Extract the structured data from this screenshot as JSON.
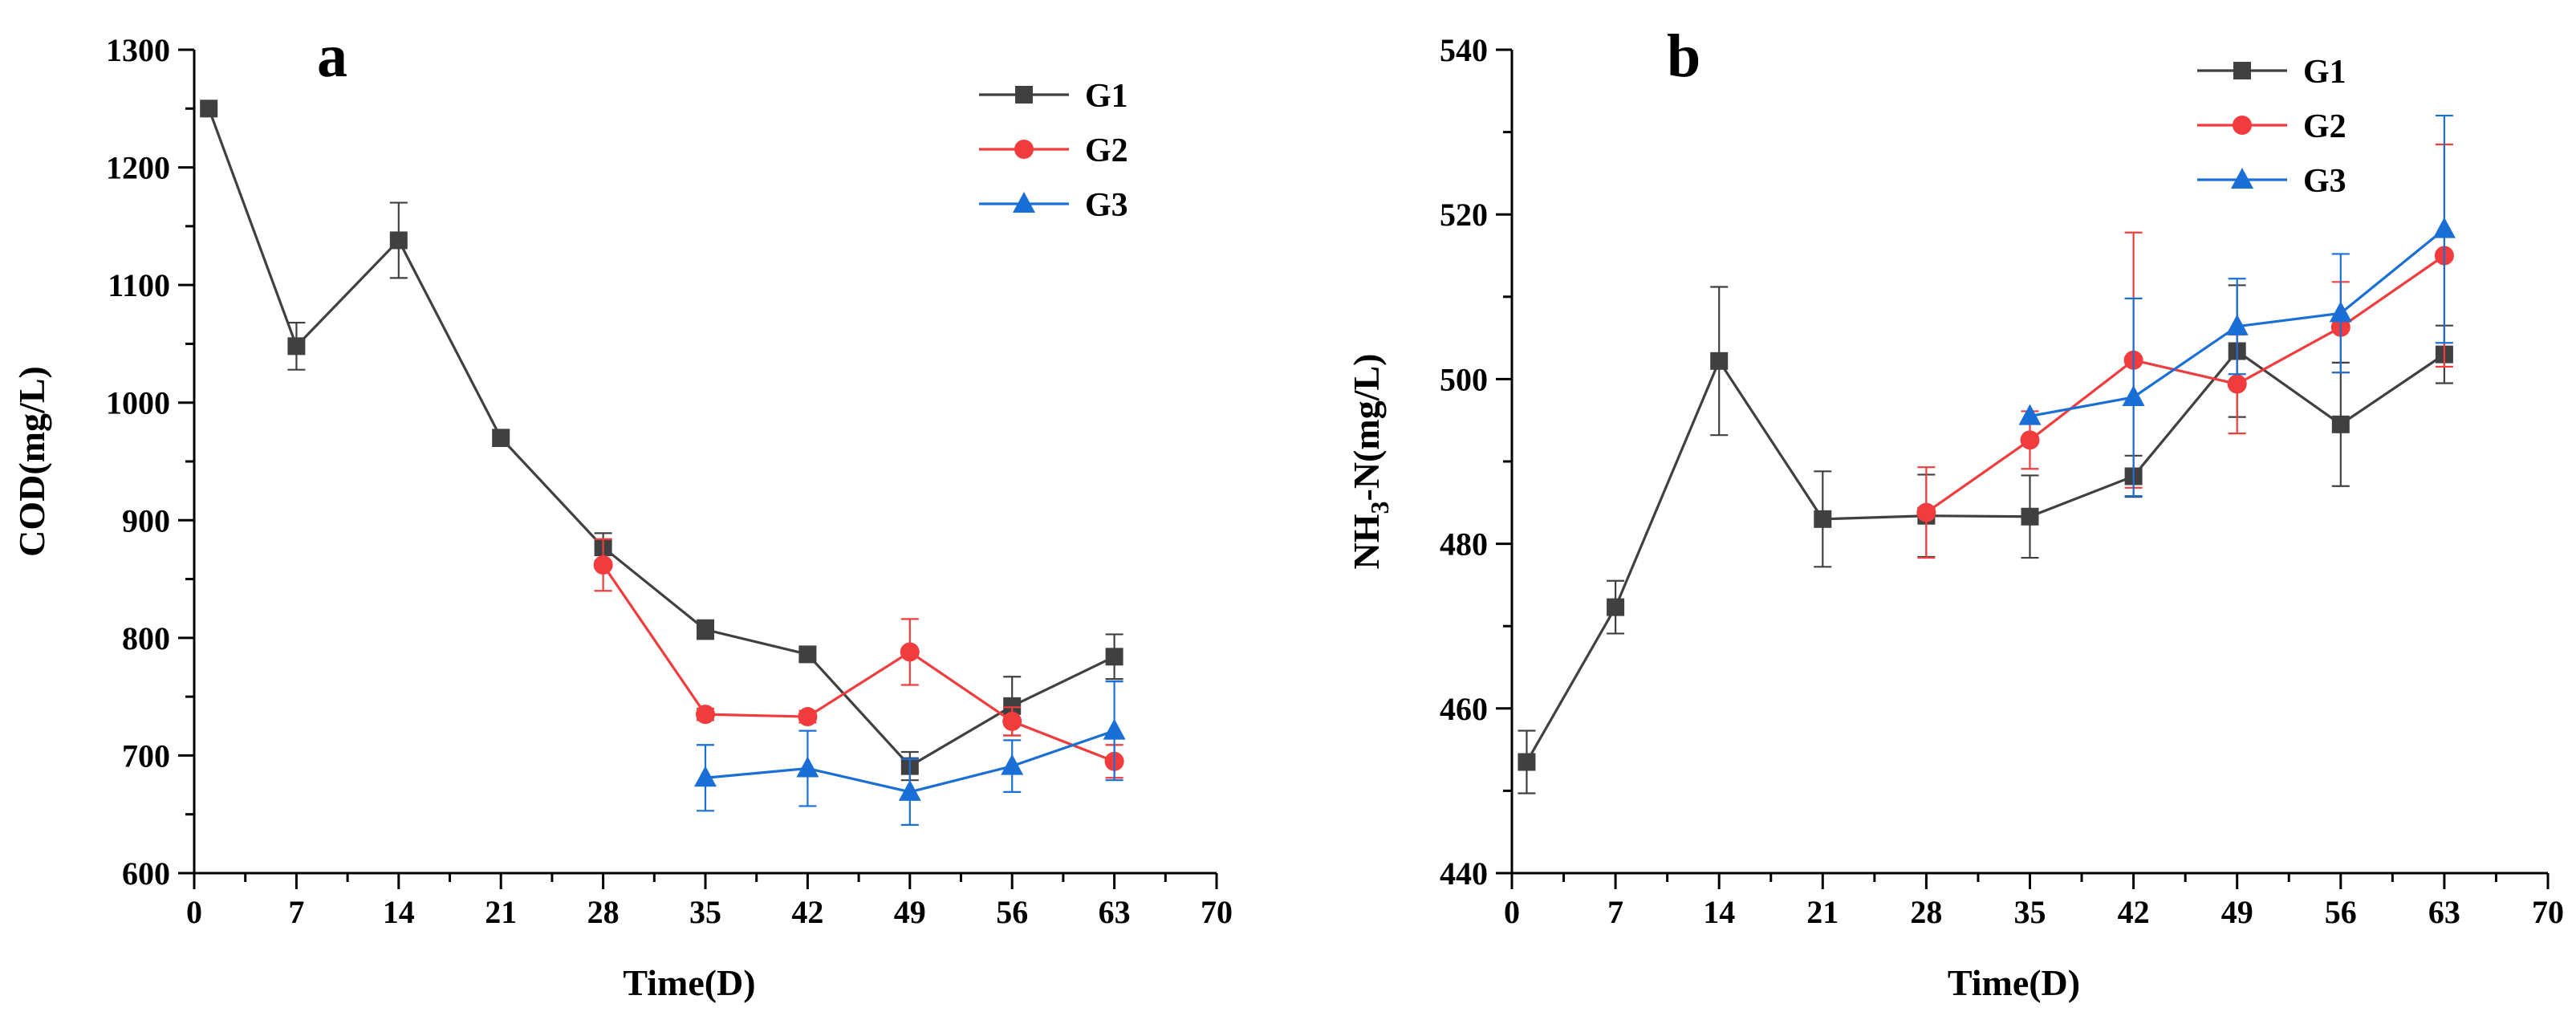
{
  "chart_data": [
    {
      "type": "line",
      "panel": "a",
      "xlabel": "Time(D)",
      "ylabel": "COD(mg/L)",
      "xlim": [
        0,
        70
      ],
      "ylim": [
        600,
        1300
      ],
      "xticks": [
        0,
        7,
        14,
        21,
        28,
        35,
        42,
        49,
        56,
        63,
        70
      ],
      "yticks": [
        600,
        700,
        800,
        900,
        1000,
        1100,
        1200,
        1300
      ],
      "legend_position": "top-right",
      "series": [
        {
          "name": "G1",
          "color": "#404040",
          "marker": "square",
          "x": [
            1,
            7,
            14,
            21,
            28,
            35,
            42,
            49,
            56,
            63
          ],
          "y": [
            1250,
            1048,
            1138,
            970,
            877,
            807,
            786,
            691,
            742,
            784
          ],
          "err": [
            0,
            20,
            32,
            7,
            12,
            8,
            5,
            12,
            25,
            19
          ]
        },
        {
          "name": "G2",
          "color": "#f03c3c",
          "marker": "circle",
          "x": [
            28,
            35,
            42,
            49,
            56,
            63
          ],
          "y": [
            862,
            735,
            733,
            788,
            729,
            695
          ],
          "err": [
            22,
            5,
            5,
            28,
            12,
            14
          ]
        },
        {
          "name": "G3",
          "color": "#1a6fd6",
          "marker": "triangle",
          "x": [
            35,
            42,
            49,
            56,
            63
          ],
          "y": [
            681,
            689,
            669,
            691,
            721
          ],
          "err": [
            28,
            32,
            28,
            22,
            42
          ]
        }
      ]
    },
    {
      "type": "line",
      "panel": "b",
      "xlabel": "Time(D)",
      "ylabel_main": "NH",
      "ylabel_sub": "3",
      "ylabel_rest": "-N(mg/L)",
      "xlim": [
        0,
        70
      ],
      "ylim": [
        440,
        540
      ],
      "xticks": [
        0,
        7,
        14,
        21,
        28,
        35,
        42,
        49,
        56,
        63,
        70
      ],
      "yticks": [
        440,
        460,
        480,
        500,
        520,
        540
      ],
      "legend_position": "top-right",
      "series": [
        {
          "name": "G1",
          "color": "#404040",
          "marker": "square",
          "x": [
            1,
            7,
            14,
            21,
            28,
            35,
            42,
            49,
            56,
            63
          ],
          "y": [
            453.5,
            472.3,
            502.2,
            483.0,
            483.4,
            483.3,
            488.2,
            503.4,
            494.5,
            503.0
          ],
          "err": [
            3.8,
            3.2,
            9.0,
            5.8,
            5.0,
            5.0,
            2.5,
            8.0,
            7.5,
            3.5
          ]
        },
        {
          "name": "G2",
          "color": "#f03c3c",
          "marker": "circle",
          "x": [
            28,
            35,
            42,
            49,
            56,
            63
          ],
          "y": [
            483.8,
            492.6,
            502.3,
            499.4,
            506.3,
            515.0
          ],
          "err": [
            5.5,
            3.5,
            15.5,
            6.0,
            5.5,
            13.5
          ]
        },
        {
          "name": "G3",
          "color": "#1a6fd6",
          "marker": "triangle",
          "x": [
            35,
            42,
            49,
            56,
            63
          ],
          "y": [
            495.5,
            497.8,
            506.4,
            508.0,
            518.2
          ],
          "err": [
            0,
            12.0,
            5.8,
            7.2,
            13.8
          ]
        }
      ]
    }
  ]
}
